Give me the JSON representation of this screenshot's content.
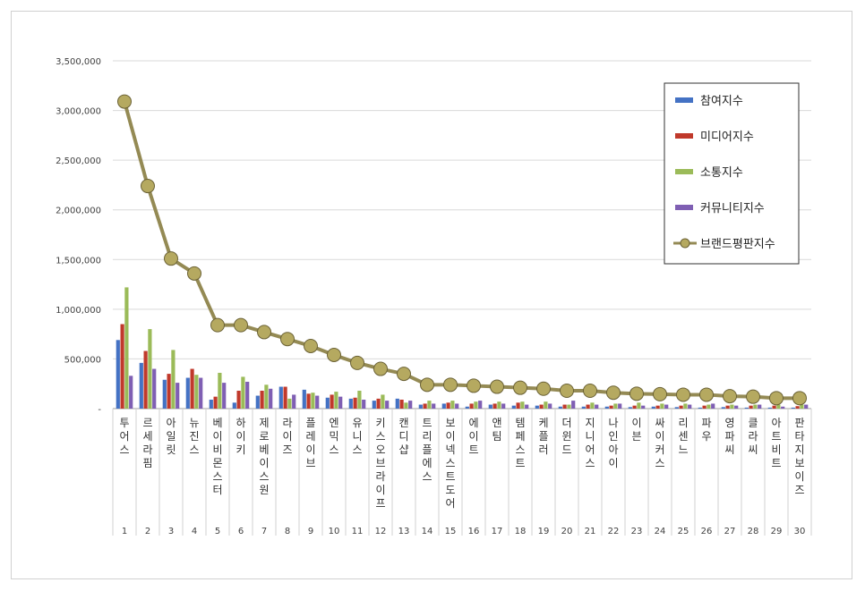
{
  "chart_data": {
    "type": "bar",
    "title": "",
    "xlabel": "",
    "ylabel": "",
    "ylim": [
      0,
      3500000
    ],
    "yticks": [
      "-",
      "500,000",
      "1,000,000",
      "1,500,000",
      "2,000,000",
      "2,500,000",
      "3,000,000",
      "3,500,000"
    ],
    "grid": true,
    "legend_position": "top-right",
    "ranks": [
      "1",
      "2",
      "3",
      "4",
      "5",
      "6",
      "7",
      "8",
      "9",
      "10",
      "11",
      "12",
      "13",
      "14",
      "15",
      "16",
      "17",
      "18",
      "19",
      "20",
      "21",
      "22",
      "23",
      "24",
      "25",
      "26",
      "27",
      "28",
      "29",
      "30"
    ],
    "categories": [
      "투어스",
      "르세라핌",
      "아일릿",
      "뉴진스",
      "베이비몬스터",
      "하이키",
      "제로베이스원",
      "라이즈",
      "플레이브",
      "엔믹스",
      "유니스",
      "키스오브라이프",
      "캔디샵",
      "트리플에스",
      "보이넥스트도어",
      "에이트",
      "앤팀",
      "템페스트",
      "케플러",
      "더윈드",
      "지니어스",
      "나인아이",
      "이븐",
      "싸이커스",
      "리센느",
      "파우",
      "영파씨",
      "클라씨",
      "아트비트",
      "판타지보이즈"
    ],
    "series": [
      {
        "name": "참여지수",
        "color": "#4472c4",
        "kind": "bar",
        "values": [
          690000,
          460000,
          290000,
          310000,
          90000,
          60000,
          130000,
          220000,
          190000,
          110000,
          100000,
          80000,
          100000,
          40000,
          50000,
          20000,
          40000,
          30000,
          30000,
          20000,
          20000,
          20000,
          15000,
          20000,
          15000,
          10000,
          15000,
          10000,
          10000,
          10000
        ]
      },
      {
        "name": "미디어지수",
        "color": "#c0392b",
        "kind": "bar",
        "values": [
          850000,
          580000,
          350000,
          400000,
          120000,
          180000,
          180000,
          220000,
          150000,
          140000,
          110000,
          100000,
          90000,
          50000,
          60000,
          50000,
          50000,
          60000,
          40000,
          40000,
          40000,
          30000,
          30000,
          30000,
          30000,
          30000,
          30000,
          30000,
          30000,
          25000
        ]
      },
      {
        "name": "소통지수",
        "color": "#9bbb59",
        "kind": "bar",
        "values": [
          1220000,
          800000,
          590000,
          340000,
          360000,
          320000,
          240000,
          100000,
          160000,
          170000,
          180000,
          140000,
          60000,
          80000,
          80000,
          70000,
          70000,
          70000,
          70000,
          40000,
          60000,
          50000,
          60000,
          50000,
          50000,
          40000,
          40000,
          40000,
          40000,
          40000
        ]
      },
      {
        "name": "커뮤니티지수",
        "color": "#7f5fb3",
        "kind": "bar",
        "values": [
          330000,
          400000,
          260000,
          310000,
          260000,
          270000,
          200000,
          140000,
          130000,
          120000,
          90000,
          80000,
          80000,
          50000,
          50000,
          80000,
          50000,
          40000,
          50000,
          80000,
          40000,
          50000,
          30000,
          40000,
          40000,
          50000,
          30000,
          40000,
          20000,
          40000
        ]
      },
      {
        "name": "브랜드평판지수",
        "color": "#948a54",
        "kind": "line",
        "values": [
          3090000,
          2240000,
          1510000,
          1360000,
          840000,
          840000,
          770000,
          700000,
          630000,
          540000,
          460000,
          400000,
          350000,
          240000,
          240000,
          230000,
          220000,
          210000,
          200000,
          180000,
          180000,
          160000,
          150000,
          145000,
          140000,
          140000,
          125000,
          120000,
          105000,
          105000
        ]
      }
    ]
  }
}
